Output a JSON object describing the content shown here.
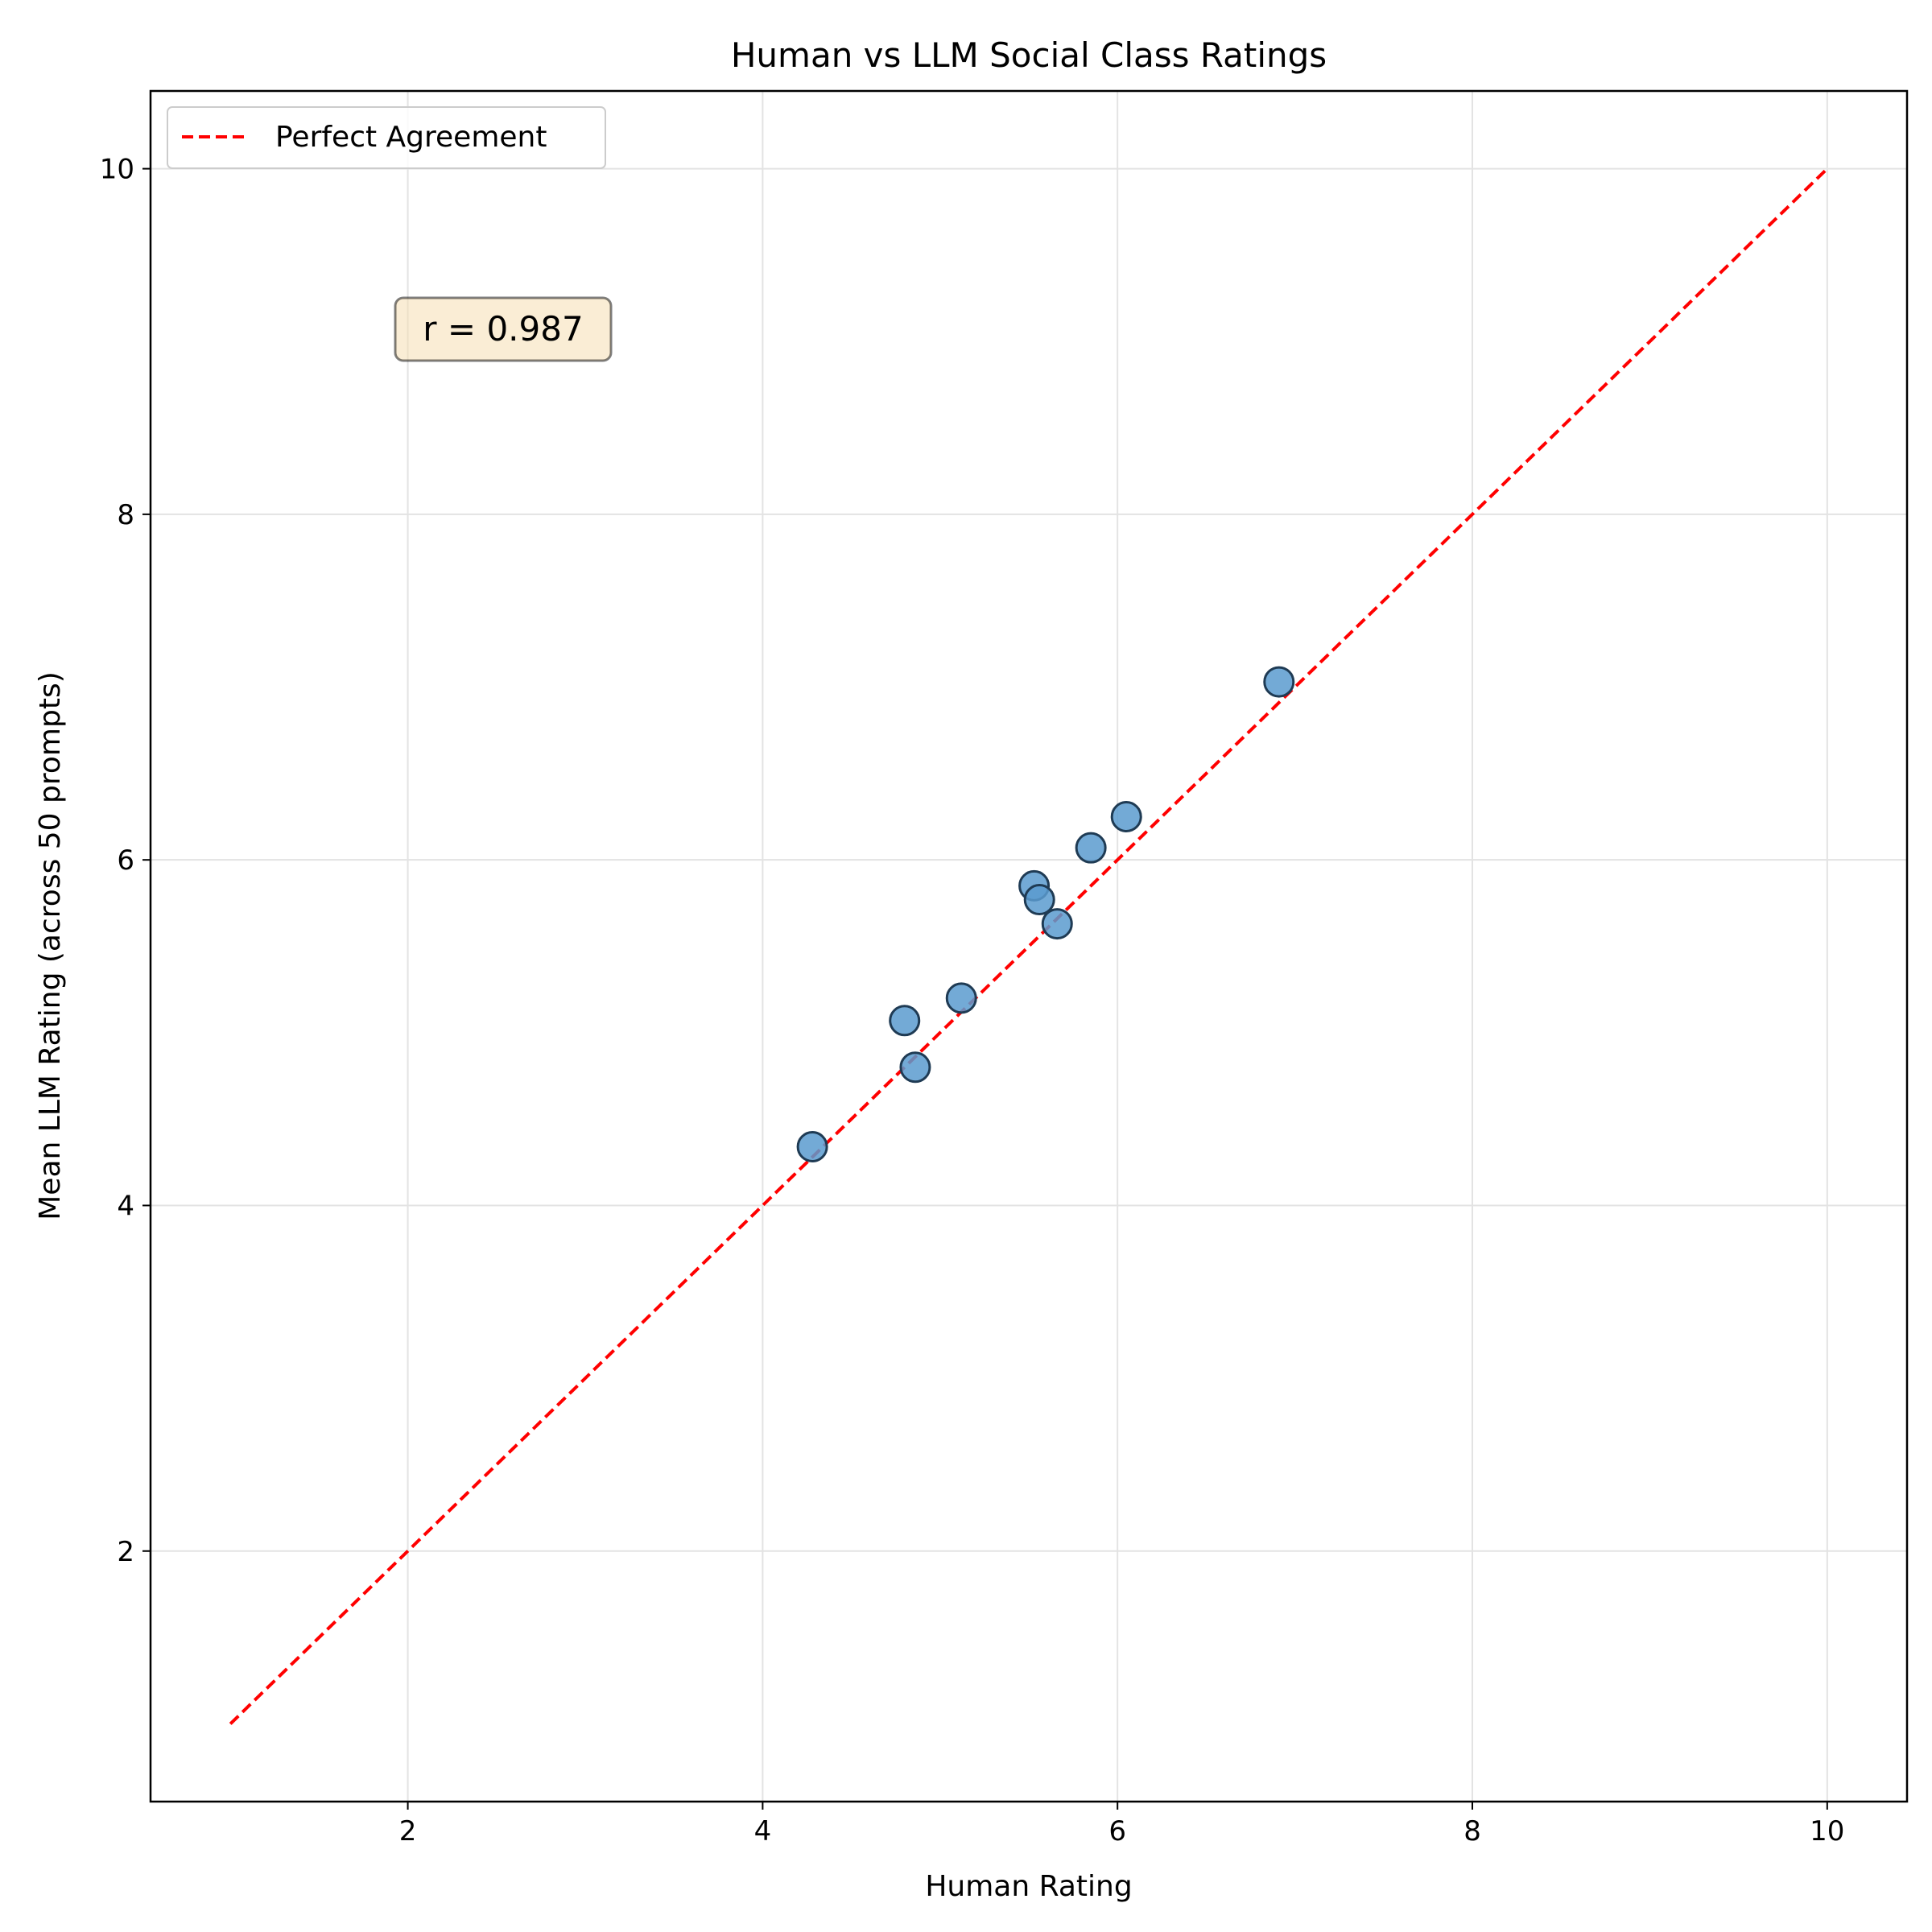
{
  "chart_data": {
    "type": "scatter",
    "title": "Human vs LLM Social Class Ratings",
    "xlabel": "Human Rating",
    "ylabel": "Mean LLM Rating (across 50 prompts)",
    "xlim": [
      0.55,
      10.45
    ],
    "ylim": [
      0.55,
      10.45
    ],
    "xticks": [
      2,
      4,
      6,
      8,
      10
    ],
    "yticks": [
      2,
      4,
      6,
      8,
      10
    ],
    "grid": true,
    "legend_position": "top-left",
    "series": [
      {
        "marker_color": "#5a9bcf",
        "edge_color": "#1f3b54",
        "points": [
          {
            "x": 4.28,
            "y": 4.34
          },
          {
            "x": 4.8,
            "y": 5.07
          },
          {
            "x": 4.86,
            "y": 4.8
          },
          {
            "x": 5.12,
            "y": 5.2
          },
          {
            "x": 5.53,
            "y": 5.85
          },
          {
            "x": 5.56,
            "y": 5.77
          },
          {
            "x": 5.66,
            "y": 5.63
          },
          {
            "x": 5.85,
            "y": 6.07
          },
          {
            "x": 6.05,
            "y": 6.25
          },
          {
            "x": 6.91,
            "y": 7.03
          }
        ]
      }
    ],
    "reference_line": {
      "name": "Perfect Agreement",
      "color": "#ff0000",
      "style": "dashed",
      "x": [
        1,
        10
      ],
      "y": [
        1,
        10
      ]
    },
    "annotation": {
      "text": "r = 0.987",
      "box_color": "#f5deb3"
    }
  }
}
